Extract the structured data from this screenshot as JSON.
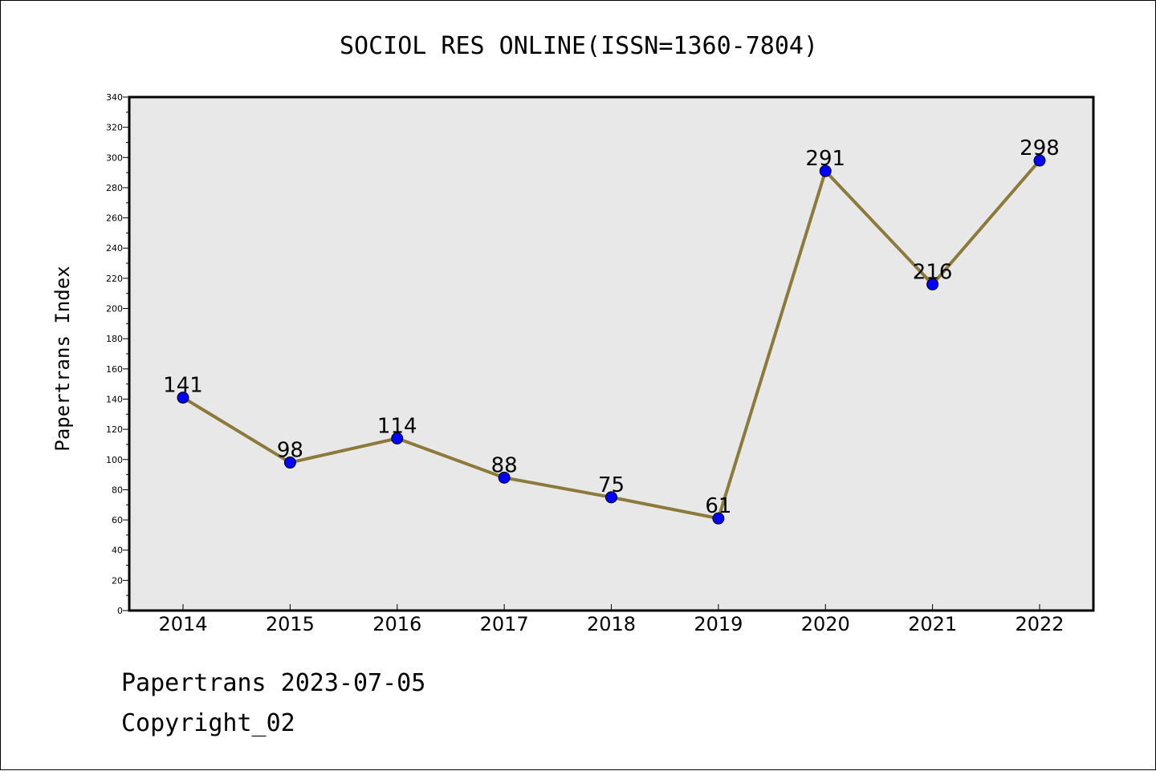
{
  "chart_data": {
    "type": "line",
    "title": "SOCIOL RES ONLINE(ISSN=1360-7804)",
    "xlabel": "",
    "ylabel": "Papertrans Index",
    "categories": [
      "2014",
      "2015",
      "2016",
      "2017",
      "2018",
      "2019",
      "2020",
      "2021",
      "2022"
    ],
    "series": [
      {
        "values": [
          141,
          98,
          114,
          88,
          75,
          61,
          291,
          216,
          298
        ]
      }
    ],
    "data_labels": [
      "141",
      "98",
      "114",
      "88",
      "75",
      "61",
      "291",
      "216",
      "298"
    ],
    "ylim": [
      0,
      340
    ],
    "yticks": [
      "0",
      "20",
      "40",
      "60",
      "80",
      "100",
      "120",
      "140",
      "160",
      "180",
      "200",
      "220",
      "240",
      "260",
      "280",
      "300",
      "320",
      "340"
    ],
    "grid": false,
    "legend": "none",
    "colors": {
      "line": "#8b7a3a",
      "marker": "#0000ff",
      "plot_background": "#e8e8e8"
    }
  },
  "footer": {
    "source": "Papertrans 2023-07-05",
    "copyright": "Copyright_02"
  }
}
